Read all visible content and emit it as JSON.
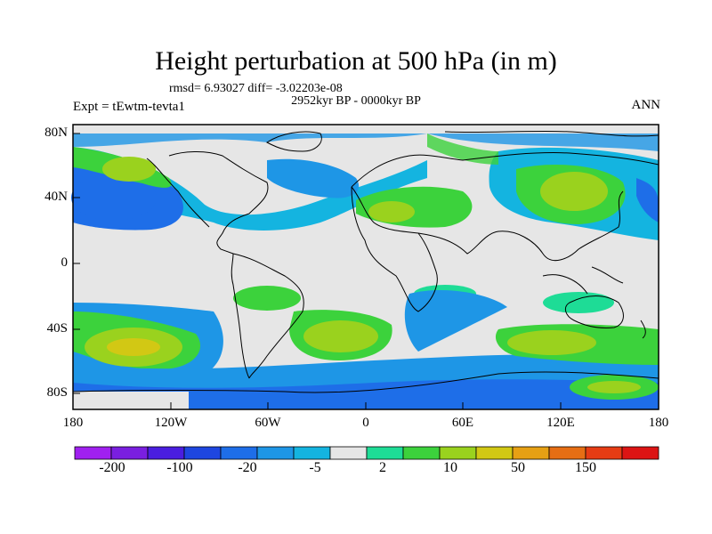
{
  "title": "Height perturbation at 500 hPa (in m)",
  "stats": "rmsd= 6.93027 diff= -3.02203e-08",
  "period": "2952kyr BP - 0000kyr BP",
  "experiment": "Expt = tEwtm-tevta1",
  "season": "ANN",
  "lat_labels": [
    "80N",
    "40N",
    "0",
    "40S",
    "80S"
  ],
  "lon_labels": [
    "180",
    "120W",
    "60W",
    "0",
    "60E",
    "120E",
    "180"
  ],
  "colorbar": {
    "labels": [
      "-200",
      "-100",
      "-20",
      "-5",
      "2",
      "10",
      "50",
      "150"
    ],
    "colors": [
      "#a020f0",
      "#7a1fe0",
      "#4a1ee0",
      "#1e46e0",
      "#1e6ee8",
      "#1e96e6",
      "#14b4e0",
      "#e6e6e6",
      "#1edc96",
      "#3cd23c",
      "#9ad21e",
      "#d2c814",
      "#e6a014",
      "#e66e14",
      "#e63c14",
      "#dc1414"
    ]
  },
  "map_colors": {
    "ocean_neutral": "#e6e6e6",
    "blue_light": "#14b4e0",
    "blue_mid": "#1e96e6",
    "blue_deep": "#1e6ee8",
    "green_teal": "#1edc96",
    "green": "#3cd23c",
    "yellow_green": "#9ad21e",
    "yellow": "#d2c814",
    "white": "#ffffff"
  }
}
